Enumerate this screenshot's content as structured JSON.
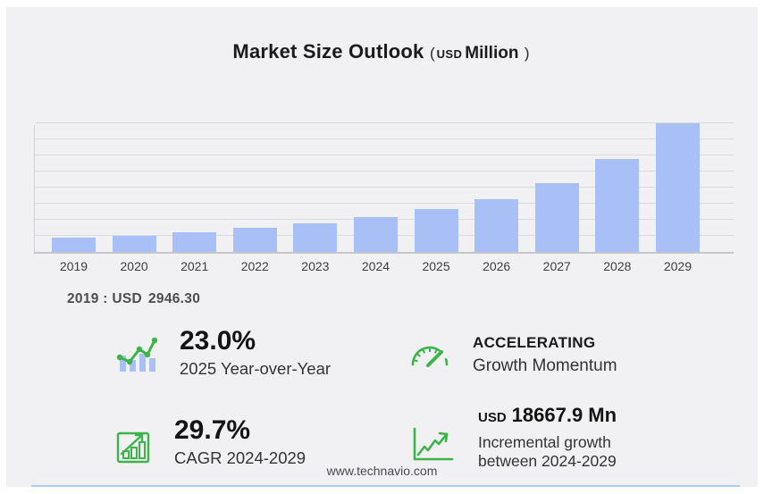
{
  "title": {
    "main": "Market Size Outlook",
    "paren_open": "(",
    "currency": "USD",
    "unit": "Million",
    "paren_close": ")"
  },
  "chart_data": {
    "type": "bar",
    "title": "Market Size Outlook (USD Million)",
    "categories": [
      "2019",
      "2020",
      "2021",
      "2022",
      "2023",
      "2024",
      "2025",
      "2026",
      "2027",
      "2028",
      "2029"
    ],
    "values": [
      2946.3,
      3310,
      3950,
      4840,
      5750,
      6991,
      8599,
      10600,
      13800,
      18600,
      25658.9
    ],
    "xlabel": "",
    "ylabel": "",
    "ylim": [
      0,
      25700
    ],
    "gridlines": 8,
    "grid": true,
    "legend_position": "none",
    "annotation": "2019 : USD 2946.30"
  },
  "annotation_2019": {
    "prefix": "2019 : USD",
    "value": "2946.30"
  },
  "stats": {
    "yoy": {
      "value": "23.0%",
      "label": "2025 Year-over-Year",
      "icon": "trend-bars-icon"
    },
    "momentum": {
      "value": "ACCELERATING",
      "label": "Growth Momentum",
      "icon": "gauge-icon"
    },
    "cagr": {
      "value": "29.7%",
      "label": "CAGR 2024-2029",
      "icon": "framed-bar-growth-icon"
    },
    "incremental": {
      "currency": "USD",
      "value": "18667.9 Mn",
      "label_line1": "Incremental growth",
      "label_line2": "between 2024-2029",
      "icon": "axes-growth-arrow-icon"
    }
  },
  "footer": {
    "website": "www.technavio.com"
  },
  "colors": {
    "bar": "#a9c0f6",
    "accent_green": "#3cb44a",
    "card_bg": "#f1f1f3",
    "gridline": "#dbdbde",
    "baseline": "#c7c7ca",
    "bottom_line": "#b3c9f5"
  }
}
